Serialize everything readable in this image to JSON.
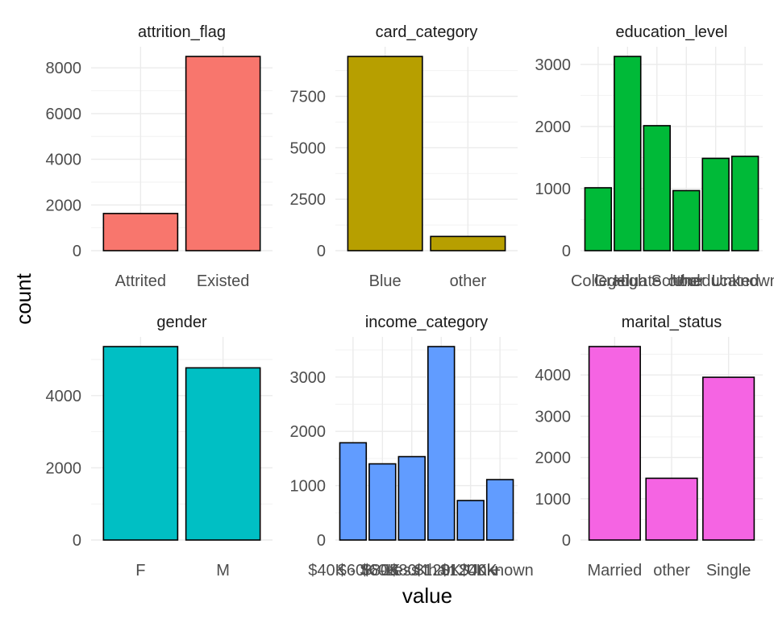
{
  "chart_data": {
    "type": "bar",
    "layout": "facet-grid",
    "xlabel": "value",
    "ylabel": "count",
    "grid": true,
    "legend": "none",
    "panels": [
      {
        "title": "attrition_flag",
        "categories": [
          "Attrited",
          "Existed"
        ],
        "values": [
          1627,
          8500
        ],
        "yticks": [
          "0",
          "2000",
          "4000",
          "6000",
          "8000"
        ],
        "ytick_values": [
          0,
          2000,
          4000,
          6000,
          8000
        ],
        "ylim": [
          0,
          8925
        ],
        "color": "#F8766D"
      },
      {
        "title": "card_category",
        "categories": [
          "Blue",
          "other"
        ],
        "values": [
          9436,
          691
        ],
        "yticks": [
          "0",
          "2500",
          "5000",
          "7500"
        ],
        "ytick_values": [
          0,
          2500,
          5000,
          7500
        ],
        "ylim": [
          0,
          9908
        ],
        "color": "#B79F00"
      },
      {
        "title": "education_level",
        "categories": [
          "College",
          "Graduate",
          "High School",
          "other",
          "Uneducated",
          "Unknown"
        ],
        "values": [
          1013,
          3128,
          2013,
          967,
          1487,
          1519
        ],
        "yticks": [
          "0",
          "1000",
          "2000",
          "3000"
        ],
        "ytick_values": [
          0,
          1000,
          2000,
          3000
        ],
        "ylim": [
          0,
          3284
        ],
        "color": "#00BA38"
      },
      {
        "title": "gender",
        "categories": [
          "F",
          "M"
        ],
        "values": [
          5358,
          4769
        ],
        "yticks": [
          "0",
          "2000",
          "4000"
        ],
        "ytick_values": [
          0,
          2000,
          4000
        ],
        "ylim": [
          0,
          5626
        ],
        "color": "#00BFC4"
      },
      {
        "title": "income_category",
        "categories": [
          "$40K - $60K",
          "$60K - $80K",
          "$80K - $120K",
          "Less than $40K",
          "$120K +",
          "Unknown"
        ],
        "values": [
          1790,
          1402,
          1535,
          3561,
          727,
          1112
        ],
        "yticks": [
          "0",
          "1000",
          "2000",
          "3000"
        ],
        "ytick_values": [
          0,
          1000,
          2000,
          3000
        ],
        "ylim": [
          0,
          3739
        ],
        "color": "#619CFF"
      },
      {
        "title": "marital_status",
        "categories": [
          "Married",
          "other",
          "Single"
        ],
        "values": [
          4687,
          1496,
          3943
        ],
        "yticks": [
          "0",
          "1000",
          "2000",
          "3000",
          "4000"
        ],
        "ytick_values": [
          0,
          1000,
          2000,
          3000,
          4000
        ],
        "ylim": [
          0,
          4921
        ],
        "color": "#F564E3"
      }
    ]
  }
}
